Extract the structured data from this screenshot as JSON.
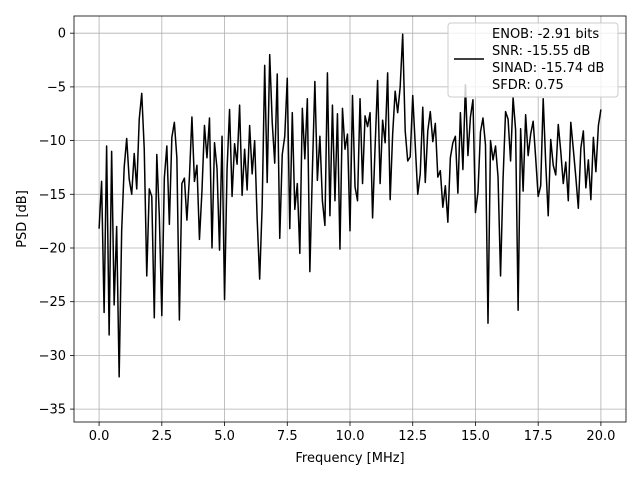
{
  "chart_data": {
    "type": "line",
    "xlabel": "Frequency [MHz]",
    "ylabel": "PSD [dB]",
    "xlim": [
      -1.0,
      21.0
    ],
    "ylim": [
      -36.2,
      1.6
    ],
    "xticks": [
      0.0,
      2.5,
      5.0,
      7.5,
      10.0,
      12.5,
      15.0,
      17.5,
      20.0
    ],
    "xtick_labels": [
      "0.0",
      "2.5",
      "5.0",
      "7.5",
      "10.0",
      "12.5",
      "15.0",
      "17.5",
      "20.0"
    ],
    "yticks": [
      0,
      -5,
      -10,
      -15,
      -20,
      -25,
      -30,
      -35
    ],
    "ytick_labels": [
      "0",
      "−5",
      "−10",
      "−15",
      "−20",
      "−25",
      "−30",
      "−35"
    ],
    "grid": true,
    "line_color": "#000000",
    "legend": {
      "placement": "top-right",
      "entries": [
        "ENOB: -2.91 bits",
        "SNR: -15.55 dB",
        "SINAD: -15.74 dB",
        "SFDR: 0.75"
      ]
    },
    "series": [
      {
        "x": [
          0.0,
          0.1,
          0.2,
          0.3,
          0.4,
          0.5,
          0.6,
          0.7,
          0.8,
          0.9,
          1.0,
          1.1,
          1.2,
          1.3,
          1.4,
          1.5,
          1.6,
          1.7,
          1.8,
          1.9,
          2.0,
          2.1,
          2.2,
          2.3,
          2.4,
          2.5,
          2.6,
          2.7,
          2.8,
          2.9,
          3.0,
          3.1,
          3.2,
          3.3,
          3.4,
          3.5,
          3.6,
          3.7,
          3.8,
          3.9,
          4.0,
          4.1,
          4.2,
          4.3,
          4.4,
          4.5,
          4.6,
          4.7,
          4.8,
          4.9,
          5.0,
          5.1,
          5.2,
          5.3,
          5.4,
          5.5,
          5.6,
          5.7,
          5.8,
          5.9,
          6.0,
          6.1,
          6.2,
          6.3,
          6.4,
          6.5,
          6.6,
          6.7,
          6.8,
          6.9,
          7.0,
          7.1,
          7.2,
          7.3,
          7.4,
          7.5,
          7.6,
          7.7,
          7.8,
          7.9,
          8.0,
          8.1,
          8.2,
          8.3,
          8.4,
          8.5,
          8.6,
          8.7,
          8.8,
          8.9,
          9.0,
          9.1,
          9.2,
          9.3,
          9.4,
          9.5,
          9.6,
          9.7,
          9.8,
          9.9,
          10.0,
          10.1,
          10.2,
          10.3,
          10.4,
          10.5,
          10.6,
          10.7,
          10.8,
          10.9,
          11.0,
          11.1,
          11.2,
          11.3,
          11.4,
          11.5,
          11.6,
          11.7,
          11.8,
          11.9,
          12.0,
          12.1,
          12.2,
          12.3,
          12.4,
          12.5,
          12.6,
          12.7,
          12.8,
          12.9,
          13.0,
          13.1,
          13.2,
          13.3,
          13.4,
          13.5,
          13.6,
          13.7,
          13.8,
          13.9,
          14.0,
          14.1,
          14.2,
          14.3,
          14.4,
          14.5,
          14.6,
          14.7,
          14.8,
          14.9,
          15.0,
          15.1,
          15.2,
          15.3,
          15.4,
          15.5,
          15.6,
          15.7,
          15.8,
          15.9,
          16.0,
          16.1,
          16.2,
          16.3,
          16.4,
          16.5,
          16.6,
          16.7,
          16.8,
          16.9,
          17.0,
          17.1,
          17.2,
          17.3,
          17.4,
          17.5,
          17.6,
          17.7,
          17.8,
          17.9,
          18.0,
          18.1,
          18.2,
          18.3,
          18.4,
          18.5,
          18.6,
          18.7,
          18.8,
          18.9,
          19.0,
          19.1,
          19.2,
          19.3,
          19.4,
          19.5,
          19.6,
          19.7,
          19.8,
          19.9,
          20.0
        ],
        "values": [
          -18.2,
          -13.8,
          -26.0,
          -10.5,
          -28.1,
          -11.0,
          -25.3,
          -18.0,
          -32.0,
          -18.4,
          -12.5,
          -9.8,
          -13.6,
          -15.0,
          -11.2,
          -14.5,
          -8.0,
          -5.6,
          -10.8,
          -22.6,
          -14.5,
          -15.2,
          -26.5,
          -11.3,
          -17.0,
          -26.3,
          -13.5,
          -10.5,
          -17.8,
          -9.7,
          -8.3,
          -11.6,
          -26.7,
          -14.0,
          -13.5,
          -17.4,
          -13.4,
          -7.8,
          -13.8,
          -12.3,
          -19.2,
          -14.7,
          -8.6,
          -11.6,
          -7.9,
          -20.0,
          -10.2,
          -12.6,
          -20.2,
          -9.6,
          -24.8,
          -12.7,
          -7.1,
          -15.2,
          -10.3,
          -12.2,
          -6.7,
          -15.1,
          -10.8,
          -14.6,
          -8.6,
          -13.1,
          -10.0,
          -17.3,
          -22.9,
          -16.0,
          -3.0,
          -13.9,
          -2.0,
          -8.3,
          -12.1,
          -3.8,
          -19.1,
          -11.3,
          -9.6,
          -4.2,
          -18.2,
          -7.4,
          -16.4,
          -14.0,
          -20.5,
          -7.0,
          -11.7,
          -6.1,
          -22.2,
          -12.9,
          -4.5,
          -13.7,
          -9.6,
          -15.6,
          -17.9,
          -3.7,
          -17.0,
          -6.7,
          -15.6,
          -7.5,
          -20.1,
          -7.0,
          -10.8,
          -9.4,
          -18.4,
          -5.8,
          -14.3,
          -15.6,
          -6.1,
          -14.0,
          -7.7,
          -8.7,
          -7.4,
          -17.2,
          -10.6,
          -4.4,
          -14.0,
          -8.1,
          -10.2,
          -3.7,
          -15.5,
          -9.4,
          -5.4,
          -7.4,
          -5.0,
          -0.1,
          -9.1,
          -11.9,
          -11.5,
          -5.8,
          -10.4,
          -15.0,
          -13.1,
          -6.9,
          -13.9,
          -9.1,
          -7.3,
          -10.1,
          -8.4,
          -13.4,
          -12.8,
          -16.2,
          -14.2,
          -17.6,
          -11.6,
          -10.2,
          -9.6,
          -14.9,
          -7.4,
          -12.7,
          -4.8,
          -11.4,
          -7.8,
          -6.2,
          -16.7,
          -14.8,
          -9.2,
          -7.9,
          -10.4,
          -27.0,
          -10.0,
          -11.8,
          -10.5,
          -13.4,
          -22.6,
          -13.6,
          -7.3,
          -8.0,
          -11.9,
          -6.0,
          -9.0,
          -25.8,
          -8.9,
          -14.7,
          -7.6,
          -11.4,
          -9.4,
          -8.2,
          -11.6,
          -15.2,
          -14.2,
          -6.1,
          -12.1,
          -17.0,
          -9.9,
          -12.3,
          -13.2,
          -8.5,
          -11.0,
          -14.0,
          -12.0,
          -15.6,
          -8.3,
          -10.8,
          -13.4,
          -16.3,
          -10.7,
          -9.1,
          -14.4,
          -11.8,
          -15.5,
          -9.7,
          -12.9,
          -8.6,
          -7.1
        ]
      }
    ]
  }
}
